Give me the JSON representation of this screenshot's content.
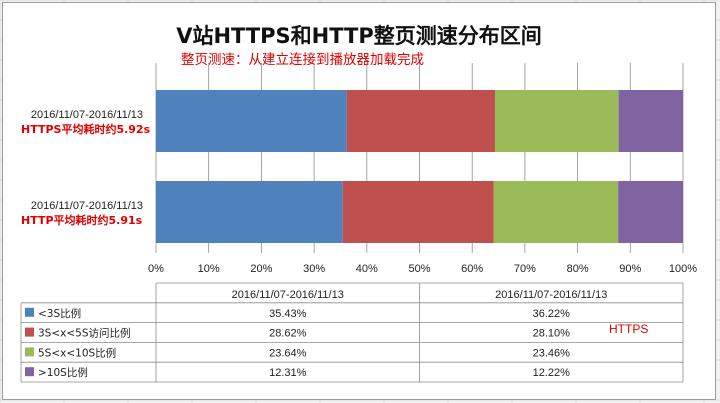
{
  "chart_data": {
    "type": "bar",
    "orientation": "horizontal",
    "stacked": "percent",
    "title": "V站HTTPS和HTTP整页测速分布区间",
    "subtitle": "整页测速：从建立连接到播放器加载完成",
    "categories": [
      {
        "label": "2016/11/07-2016/11/13",
        "sublabel": "HTTPS平均耗时约5.92s"
      },
      {
        "label": "2016/11/07-2016/11/13",
        "sublabel": "HTTP平均耗时约5.91s"
      }
    ],
    "xlim": [
      0,
      100
    ],
    "x_ticks": [
      "0%",
      "10%",
      "20%",
      "30%",
      "40%",
      "50%",
      "60%",
      "70%",
      "80%",
      "90%",
      "100%"
    ],
    "grid": true,
    "legend": "data-table-left",
    "series": [
      {
        "name": "<3S比例",
        "color": "#4f81bd",
        "values": [
          36.22,
          35.43
        ],
        "labels": [
          "36.22%",
          "35.43%"
        ]
      },
      {
        "name": "3S<x<5S访问比例",
        "color": "#c0504d",
        "values": [
          28.1,
          28.62
        ],
        "labels": [
          "28.10%",
          "28.62%"
        ]
      },
      {
        "name": "5S<x<10S比例",
        "color": "#9bbb59",
        "values": [
          23.46,
          23.64
        ],
        "labels": [
          "23.46%",
          "23.64%"
        ]
      },
      {
        "name": ">10S比例",
        "color": "#8064a2",
        "values": [
          12.22,
          12.31
        ],
        "labels": [
          "12.22%",
          "12.31%"
        ]
      }
    ],
    "table_headers": [
      "2016/11/07-2016/11/13",
      "2016/11/07-2016/11/13"
    ],
    "annotations": [
      "HTTPS"
    ]
  }
}
